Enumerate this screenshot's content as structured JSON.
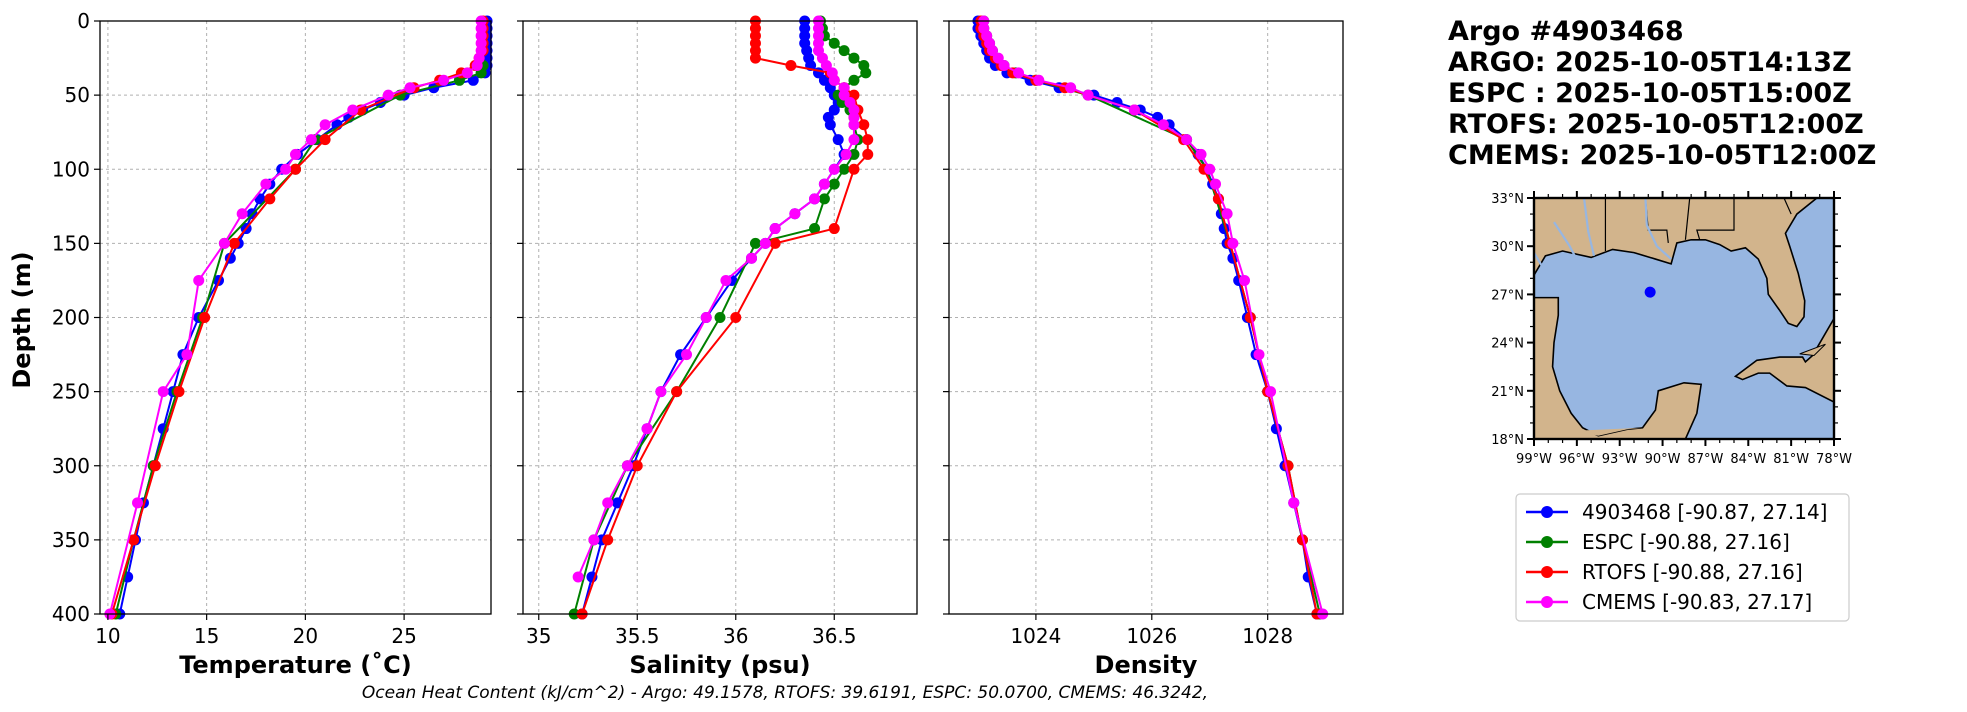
{
  "info": {
    "float_title": "Argo #4903468",
    "times": [
      "ARGO: 2025-10-05T14:13Z",
      "ESPC : 2025-10-05T15:00Z",
      "RTOFS: 2025-10-05T12:00Z",
      "CMEMS: 2025-10-05T12:00Z"
    ]
  },
  "footer": "Ocean Heat Content (kJ/cm^2) - Argo: 49.1578,  RTOFS: 39.6191,  ESPC: 50.0700,  CMEMS: 46.3242,",
  "colors": {
    "argo": "#0000ff",
    "espc": "#008000",
    "rtofs": "#ff0000",
    "cmems": "#ff00ff",
    "ocean": "#97b6e1",
    "land": "#d2b48c"
  },
  "legend": [
    {
      "label": "4903468 [-90.87, 27.14]",
      "color": "#0000ff"
    },
    {
      "label": "ESPC [-90.88, 27.16]",
      "color": "#008000"
    },
    {
      "label": "RTOFS [-90.88, 27.16]",
      "color": "#ff0000"
    },
    {
      "label": "CMEMS [-90.83, 27.17]",
      "color": "#ff00ff"
    }
  ],
  "map": {
    "lon_ticks": [
      "99°W",
      "96°W",
      "93°W",
      "90°W",
      "87°W",
      "84°W",
      "81°W",
      "78°W"
    ],
    "lon_values": [
      -99,
      -96,
      -93,
      -90,
      -87,
      -84,
      -81,
      -78
    ],
    "lat_ticks": [
      "33°N",
      "30°N",
      "27°N",
      "24°N",
      "21°N",
      "18°N"
    ],
    "lat_values": [
      33,
      30,
      27,
      24,
      21,
      18
    ],
    "lon_range": [
      -99,
      -78
    ],
    "lat_range": [
      18,
      33
    ],
    "float_position": {
      "lon": -90.87,
      "lat": 27.14
    }
  },
  "chart_data": [
    {
      "type": "line",
      "xlabel": "Temperature (˚C)",
      "ylabel": "Depth (m)",
      "xlim": [
        9.6,
        29.4
      ],
      "ylim": [
        400,
        0
      ],
      "xticks": [
        10,
        15,
        20,
        25
      ],
      "yticks": [
        0,
        50,
        100,
        150,
        200,
        250,
        300,
        350,
        400
      ],
      "grid": true,
      "depth": [
        0,
        5,
        10,
        15,
        20,
        25,
        30,
        35,
        40,
        45,
        50,
        55,
        60,
        65,
        70,
        80,
        90,
        100,
        110,
        120,
        130,
        140,
        150,
        160,
        175,
        200,
        225,
        250,
        275,
        300,
        325,
        350,
        375,
        400
      ],
      "series": [
        {
          "name": "4903468",
          "color": "#0000ff",
          "values": [
            29.2,
            29.2,
            29.2,
            29.2,
            29.2,
            29.2,
            29.2,
            29.1,
            28.5,
            26.5,
            25.0,
            23.8,
            22.9,
            22.2,
            21.6,
            20.6,
            19.6,
            18.8,
            18.2,
            17.7,
            17.3,
            17.0,
            16.6,
            16.2,
            15.6,
            14.6,
            13.8,
            13.3,
            12.8,
            12.3,
            11.8,
            11.4,
            11.0,
            10.6
          ]
        },
        {
          "name": "ESPC",
          "color": "#008000",
          "values": [
            null,
            null,
            null,
            null,
            null,
            null,
            29.0,
            28.9,
            27.8,
            null,
            24.8,
            null,
            null,
            null,
            null,
            20.5,
            null,
            19.5,
            null,
            null,
            null,
            null,
            15.9,
            null,
            null,
            14.8,
            null,
            13.5,
            null,
            12.3,
            null,
            11.3,
            null,
            10.4
          ]
        },
        {
          "name": "RTOFS",
          "color": "#ff0000",
          "values": [
            29.0,
            29.0,
            29.0,
            29.0,
            29.0,
            28.8,
            28.6,
            27.9,
            26.8,
            25.5,
            null,
            null,
            22.8,
            null,
            null,
            21.0,
            null,
            19.5,
            null,
            18.2,
            null,
            null,
            16.4,
            null,
            null,
            14.9,
            null,
            13.6,
            null,
            12.4,
            null,
            11.3,
            null,
            10.2
          ]
        },
        {
          "name": "CMEMS",
          "color": "#ff00ff",
          "values": [
            28.9,
            28.9,
            28.9,
            28.9,
            28.9,
            28.8,
            28.7,
            28.2,
            27.0,
            25.3,
            24.2,
            null,
            22.4,
            null,
            21.0,
            20.3,
            19.5,
            19.0,
            18.0,
            null,
            16.8,
            null,
            15.9,
            null,
            14.6,
            null,
            14.0,
            12.8,
            null,
            null,
            11.5,
            null,
            null,
            10.1
          ]
        }
      ]
    },
    {
      "type": "line",
      "xlabel": "Salinity (psu)",
      "ylabel": "",
      "xlim": [
        34.92,
        36.92
      ],
      "ylim": [
        400,
        0
      ],
      "xticks": [
        35.0,
        35.5,
        36.0,
        36.5
      ],
      "yticks": [
        0,
        50,
        100,
        150,
        200,
        250,
        300,
        350,
        400
      ],
      "grid": true,
      "depth": [
        0,
        5,
        10,
        15,
        20,
        25,
        30,
        35,
        40,
        45,
        50,
        55,
        60,
        65,
        70,
        80,
        90,
        100,
        110,
        120,
        130,
        140,
        150,
        160,
        175,
        200,
        225,
        250,
        275,
        300,
        325,
        350,
        375,
        400
      ],
      "series": [
        {
          "name": "4903468",
          "color": "#0000ff",
          "values": [
            36.35,
            36.35,
            36.35,
            36.35,
            36.36,
            36.37,
            36.38,
            36.42,
            36.45,
            36.48,
            36.5,
            36.52,
            36.5,
            36.47,
            36.48,
            36.52,
            36.55,
            36.5,
            36.45,
            36.4,
            36.3,
            36.2,
            36.15,
            36.08,
            35.98,
            35.85,
            35.72,
            35.62,
            35.55,
            35.48,
            35.4,
            35.32,
            35.27,
            35.22
          ]
        },
        {
          "name": "ESPC",
          "color": "#008000",
          "values": [
            36.43,
            36.44,
            36.45,
            36.5,
            36.55,
            36.6,
            36.65,
            36.66,
            36.6,
            36.55,
            36.52,
            36.54,
            36.58,
            36.6,
            36.6,
            36.62,
            36.6,
            36.55,
            36.5,
            36.45,
            null,
            36.4,
            36.1,
            null,
            null,
            35.92,
            null,
            35.7,
            null,
            35.45,
            null,
            35.28,
            null,
            35.18
          ]
        },
        {
          "name": "RTOFS",
          "color": "#ff0000",
          "values": [
            36.1,
            36.1,
            36.1,
            36.1,
            36.1,
            36.1,
            36.28,
            36.48,
            36.5,
            36.55,
            36.6,
            null,
            36.62,
            null,
            36.65,
            36.67,
            36.67,
            36.6,
            null,
            null,
            null,
            36.5,
            36.2,
            null,
            null,
            36.0,
            null,
            35.7,
            null,
            35.5,
            null,
            35.35,
            null,
            35.22
          ]
        },
        {
          "name": "CMEMS",
          "color": "#ff00ff",
          "values": [
            36.42,
            36.42,
            36.42,
            36.42,
            36.42,
            36.44,
            36.46,
            36.49,
            36.5,
            36.55,
            36.55,
            36.58,
            36.6,
            36.6,
            36.6,
            36.6,
            36.56,
            36.5,
            36.45,
            36.4,
            36.3,
            36.2,
            36.15,
            36.08,
            35.95,
            35.85,
            35.75,
            35.62,
            35.55,
            35.45,
            35.35,
            35.28,
            35.2,
            null
          ]
        }
      ]
    },
    {
      "type": "line",
      "xlabel": "Density",
      "ylabel": "",
      "xlim": [
        1022.5,
        1029.3
      ],
      "ylim": [
        400,
        0
      ],
      "xticks": [
        1024,
        1026,
        1028
      ],
      "yticks": [
        0,
        50,
        100,
        150,
        200,
        250,
        300,
        350,
        400
      ],
      "grid": true,
      "depth": [
        0,
        5,
        10,
        15,
        20,
        25,
        30,
        35,
        40,
        45,
        50,
        55,
        60,
        65,
        70,
        80,
        90,
        100,
        110,
        120,
        130,
        140,
        150,
        160,
        175,
        200,
        225,
        250,
        275,
        300,
        325,
        350,
        375,
        400
      ],
      "series": [
        {
          "name": "4903468",
          "color": "#0000ff",
          "values": [
            1023.0,
            1023.0,
            1023.05,
            1023.1,
            1023.15,
            1023.2,
            1023.3,
            1023.5,
            1023.9,
            1024.4,
            1025.0,
            1025.4,
            1025.8,
            1026.1,
            1026.3,
            1026.6,
            1026.8,
            1026.95,
            1027.05,
            1027.15,
            1027.2,
            1027.25,
            1027.3,
            1027.4,
            1027.5,
            1027.65,
            1027.8,
            1028.0,
            1028.15,
            1028.3,
            1028.45,
            1028.6,
            1028.7,
            1028.85
          ]
        },
        {
          "name": "ESPC",
          "color": "#008000",
          "values": [
            1023.1,
            1023.1,
            1023.15,
            1023.2,
            1023.25,
            1023.3,
            1023.45,
            1023.65,
            1024.0,
            null,
            1024.9,
            null,
            null,
            null,
            null,
            1026.6,
            null,
            1026.95,
            null,
            null,
            null,
            null,
            1027.35,
            null,
            null,
            1027.7,
            null,
            1028.0,
            null,
            1028.35,
            null,
            1028.6,
            null,
            1028.9
          ]
        },
        {
          "name": "RTOFS",
          "color": "#ff0000",
          "values": [
            1023.05,
            1023.05,
            1023.1,
            1023.15,
            1023.2,
            1023.3,
            1023.4,
            1023.6,
            1024.0,
            1024.5,
            null,
            null,
            1025.7,
            null,
            null,
            1026.55,
            null,
            1026.9,
            null,
            1027.15,
            null,
            null,
            1027.35,
            null,
            null,
            1027.7,
            null,
            1028.0,
            null,
            1028.35,
            null,
            1028.6,
            null,
            1028.85
          ]
        },
        {
          "name": "CMEMS",
          "color": "#ff00ff",
          "values": [
            1023.1,
            1023.1,
            1023.15,
            1023.2,
            1023.25,
            1023.35,
            1023.45,
            1023.7,
            1024.05,
            1024.6,
            1024.9,
            null,
            1025.7,
            null,
            1026.2,
            1026.6,
            1026.85,
            1027.0,
            1027.1,
            null,
            1027.3,
            null,
            1027.4,
            null,
            1027.6,
            null,
            1027.85,
            1028.05,
            null,
            null,
            1028.45,
            null,
            null,
            1028.95
          ]
        }
      ]
    }
  ]
}
